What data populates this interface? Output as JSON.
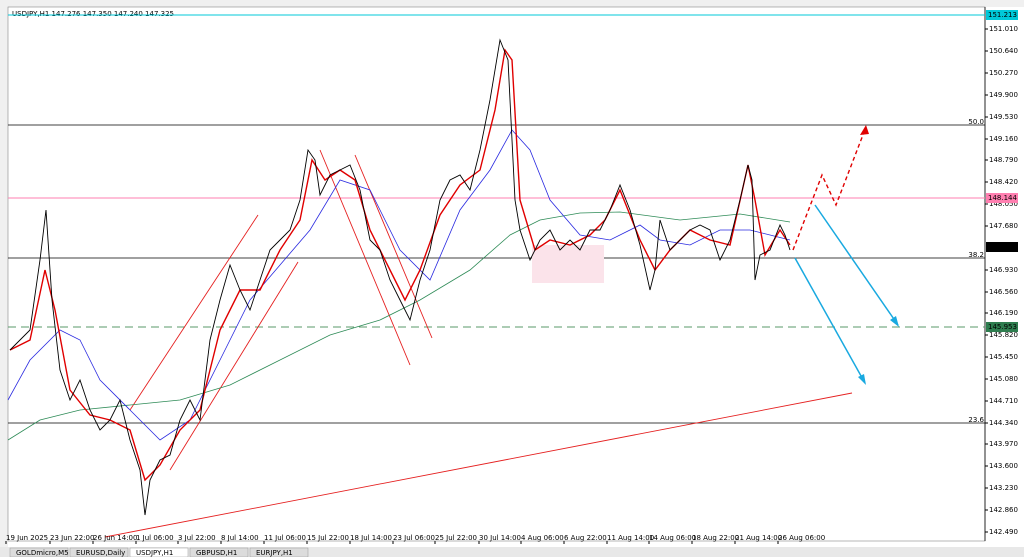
{
  "header": {
    "symbol_info": "USDJPY,H1  147.276 147.350 147.240 147.325"
  },
  "price_axis": {
    "labels": [
      "151.010",
      "150.640",
      "150.270",
      "149.900",
      "149.530",
      "149.160",
      "148.790",
      "148.420",
      "148.050",
      "147.680",
      "146.930",
      "146.560",
      "146.190",
      "145.820",
      "145.450",
      "145.080",
      "144.710",
      "144.340",
      "143.970",
      "143.600",
      "143.230",
      "142.860",
      "142.490"
    ],
    "markers": [
      {
        "label": "151.213",
        "kind": "resistance"
      },
      {
        "label": "148.144",
        "kind": "level"
      },
      {
        "label": "147.325",
        "kind": "current-price"
      },
      {
        "label": "145.953",
        "kind": "support"
      }
    ]
  },
  "time_axis": {
    "labels": [
      "19 Jun 2025",
      "23 Jun 22:00",
      "26 Jun 14:00",
      "1 Jul 06:00",
      "3 Jul 22:00",
      "8 Jul 14:00",
      "11 Jul 06:00",
      "15 Jul 22:00",
      "18 Jul 14:00",
      "23 Jul 06:00",
      "25 Jul 22:00",
      "30 Jul 14:00",
      "4 Aug 06:00",
      "6 Aug 22:00",
      "11 Aug 14:00",
      "14 Aug 06:00",
      "18 Aug 22:00",
      "21 Aug 14:00",
      "26 Aug 06:00"
    ]
  },
  "fib_levels": [
    "50.0",
    "38.2",
    "23.6"
  ],
  "tabs": [
    "GOLDmicro,M5",
    "EURUSD,Daily",
    "USDJPY,H1",
    "GBPUSD,H1",
    "EURJPY,H1"
  ]
}
